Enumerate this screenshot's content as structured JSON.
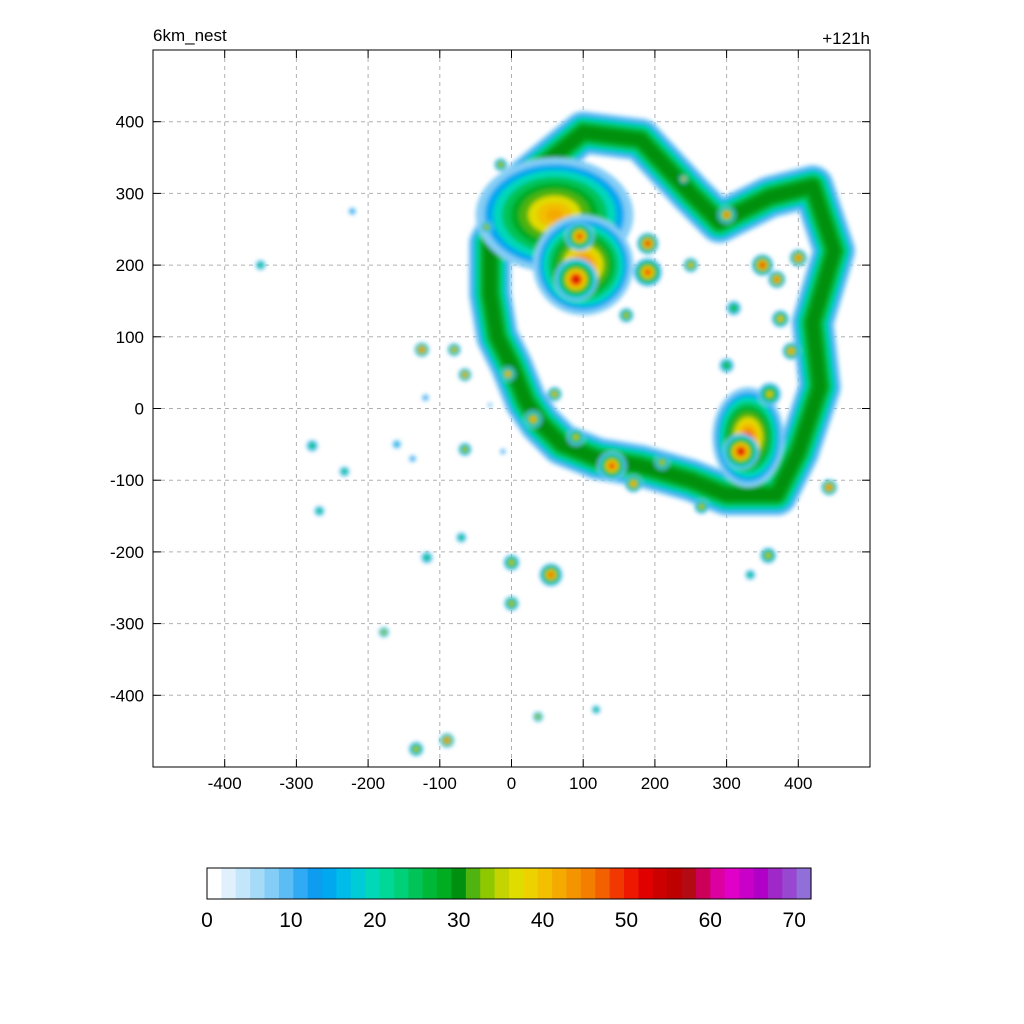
{
  "chart_data": {
    "type": "heatmap",
    "title": "6km_nest",
    "lead_time": "+121h",
    "xlim": [
      -500,
      500
    ],
    "ylim": [
      -500,
      500
    ],
    "x_ticks": [
      -400,
      -300,
      -200,
      -100,
      0,
      100,
      200,
      300,
      400
    ],
    "y_ticks": [
      400,
      300,
      200,
      100,
      0,
      -100,
      -200,
      -300,
      -400
    ],
    "grid": true,
    "xlabel": "",
    "ylabel": "",
    "colorbar": {
      "range": [
        0,
        72
      ],
      "ticks": [
        0,
        10,
        20,
        30,
        40,
        50,
        60,
        70
      ],
      "colors": [
        "#ffffff",
        "#e0f0fc",
        "#c4e6fa",
        "#a6dbf8",
        "#84cdf6",
        "#5cbcf4",
        "#30aaf4",
        "#0e9cf0",
        "#00a8f0",
        "#00bce8",
        "#00ccd8",
        "#00d8b8",
        "#00d898",
        "#00d078",
        "#00c458",
        "#00b838",
        "#00ac20",
        "#009010",
        "#50b410",
        "#90c800",
        "#c4d400",
        "#e0dc00",
        "#eed200",
        "#f2c000",
        "#f4aa00",
        "#f49400",
        "#f47e00",
        "#f26000",
        "#f03800",
        "#ee1800",
        "#e00000",
        "#cc0000",
        "#be0000",
        "#b40a14",
        "#cc0058",
        "#dc00a0",
        "#e000c8",
        "#c800c8",
        "#b000c8",
        "#a028c8",
        "#9848d0",
        "#9070d8"
      ]
    },
    "features": [
      {
        "type": "band",
        "name": "rainband-main",
        "points": [
          [
            -30,
            230
          ],
          [
            20,
            320
          ],
          [
            100,
            385
          ],
          [
            180,
            375
          ],
          [
            250,
            300
          ],
          [
            290,
            260
          ],
          [
            360,
            295
          ],
          [
            420,
            310
          ],
          [
            450,
            220
          ],
          [
            420,
            120
          ],
          [
            430,
            30
          ],
          [
            400,
            -60
          ],
          [
            370,
            -120
          ],
          [
            300,
            -120
          ],
          [
            250,
            -100
          ],
          [
            180,
            -80
          ],
          [
            120,
            -70
          ],
          [
            70,
            -50
          ],
          [
            40,
            -20
          ],
          [
            20,
            10
          ],
          [
            0,
            60
          ],
          [
            -20,
            100
          ],
          [
            -30,
            160
          ],
          [
            -30,
            230
          ]
        ],
        "width": 60,
        "value": 30
      },
      {
        "type": "blob",
        "name": "nw-core",
        "x": 60,
        "y": 270,
        "rx": 110,
        "ry": 80,
        "value": 42
      },
      {
        "type": "blob",
        "name": "nw-core-2",
        "x": 100,
        "y": 200,
        "rx": 70,
        "ry": 70,
        "value": 45
      },
      {
        "type": "blob",
        "name": "east-core",
        "x": 330,
        "y": -40,
        "rx": 50,
        "ry": 70,
        "value": 48
      },
      {
        "type": "cell",
        "name": "c1",
        "x": 90,
        "y": 180,
        "r": 30,
        "value": 55
      },
      {
        "type": "cell",
        "name": "c2",
        "x": 95,
        "y": 240,
        "r": 20,
        "value": 52
      },
      {
        "type": "cell",
        "name": "c3",
        "x": 320,
        "y": -60,
        "r": 25,
        "value": 55
      },
      {
        "type": "cell",
        "name": "c4",
        "x": 190,
        "y": 230,
        "r": 15,
        "value": 55
      },
      {
        "type": "cell",
        "name": "c5",
        "x": 190,
        "y": 190,
        "r": 20,
        "value": 52
      },
      {
        "type": "cell",
        "name": "c6",
        "x": 350,
        "y": 200,
        "r": 15,
        "value": 55
      },
      {
        "type": "cell",
        "name": "c7",
        "x": 370,
        "y": 180,
        "r": 12,
        "value": 52
      },
      {
        "type": "cell",
        "name": "c8",
        "x": 300,
        "y": 270,
        "r": 12,
        "value": 52
      },
      {
        "type": "cell",
        "name": "c9",
        "x": 140,
        "y": -80,
        "r": 20,
        "value": 52
      },
      {
        "type": "cell",
        "name": "c10",
        "x": 400,
        "y": 210,
        "r": 12,
        "value": 50
      },
      {
        "type": "cell",
        "name": "c11",
        "x": -125,
        "y": 82,
        "r": 10,
        "value": 50
      },
      {
        "type": "cell",
        "name": "c12",
        "x": -80,
        "y": 82,
        "r": 9,
        "value": 42
      },
      {
        "type": "cell",
        "name": "c13",
        "x": -65,
        "y": 47,
        "r": 9,
        "value": 45
      },
      {
        "type": "cell",
        "name": "c14",
        "x": -5,
        "y": 48,
        "r": 10,
        "value": 45
      },
      {
        "type": "cell",
        "name": "c15",
        "x": -35,
        "y": 253,
        "r": 8,
        "value": 38
      },
      {
        "type": "cell",
        "name": "c16",
        "x": -15,
        "y": 340,
        "r": 9,
        "value": 38
      },
      {
        "type": "cell",
        "name": "c17",
        "x": -65,
        "y": -57,
        "r": 9,
        "value": 40
      },
      {
        "type": "cell",
        "name": "c18",
        "x": -70,
        "y": -180,
        "r": 7,
        "value": 28
      },
      {
        "type": "cell",
        "name": "c19",
        "x": 0,
        "y": -215,
        "r": 11,
        "value": 40
      },
      {
        "type": "cell",
        "name": "c20",
        "x": 55,
        "y": -232,
        "r": 16,
        "value": 50
      },
      {
        "type": "cell",
        "name": "c21",
        "x": 0,
        "y": -272,
        "r": 10,
        "value": 38
      },
      {
        "type": "cell",
        "name": "c22",
        "x": 37,
        "y": -430,
        "r": 7,
        "value": 38
      },
      {
        "type": "cell",
        "name": "c23",
        "x": 118,
        "y": -420,
        "r": 6,
        "value": 28
      },
      {
        "type": "cell",
        "name": "c24",
        "x": -90,
        "y": -463,
        "r": 10,
        "value": 50
      },
      {
        "type": "cell",
        "name": "c25",
        "x": -133,
        "y": -475,
        "r": 10,
        "value": 38
      },
      {
        "type": "cell",
        "name": "c26",
        "x": -178,
        "y": -312,
        "r": 7,
        "value": 38
      },
      {
        "type": "cell",
        "name": "c27",
        "x": -118,
        "y": -208,
        "r": 8,
        "value": 28
      },
      {
        "type": "cell",
        "name": "c28",
        "x": -278,
        "y": -52,
        "r": 8,
        "value": 28
      },
      {
        "type": "cell",
        "name": "c29",
        "x": -233,
        "y": -88,
        "r": 7,
        "value": 25
      },
      {
        "type": "cell",
        "name": "c30",
        "x": -268,
        "y": -143,
        "r": 7,
        "value": 25
      },
      {
        "type": "cell",
        "name": "c31",
        "x": -350,
        "y": 200,
        "r": 7,
        "value": 25
      },
      {
        "type": "cell",
        "name": "c32",
        "x": -222,
        "y": 275,
        "r": 5,
        "value": 15
      },
      {
        "type": "cell",
        "name": "c33",
        "x": -160,
        "y": -50,
        "r": 6,
        "value": 18
      },
      {
        "type": "cell",
        "name": "c34",
        "x": -138,
        "y": -70,
        "r": 5,
        "value": 12
      },
      {
        "type": "cell",
        "name": "c35",
        "x": -120,
        "y": 15,
        "r": 5,
        "value": 12
      },
      {
        "type": "cell",
        "name": "c36",
        "x": -12,
        "y": -60,
        "r": 4,
        "value": 12
      },
      {
        "type": "cell",
        "name": "c37",
        "x": -30,
        "y": 5,
        "r": 3,
        "value": 12
      },
      {
        "type": "cell",
        "name": "c38",
        "x": 443,
        "y": -110,
        "r": 11,
        "value": 50
      },
      {
        "type": "cell",
        "name": "c39",
        "x": 358,
        "y": -205,
        "r": 11,
        "value": 40
      },
      {
        "type": "cell",
        "name": "c40",
        "x": 333,
        "y": -232,
        "r": 7,
        "value": 25
      },
      {
        "type": "cell",
        "name": "c41",
        "x": 265,
        "y": -137,
        "r": 10,
        "value": 40
      },
      {
        "type": "cell",
        "name": "c42",
        "x": 170,
        "y": -105,
        "r": 12,
        "value": 45
      },
      {
        "type": "cell",
        "name": "c43",
        "x": 210,
        "y": -75,
        "r": 10,
        "value": 40
      },
      {
        "type": "cell",
        "name": "c44",
        "x": 390,
        "y": 80,
        "r": 12,
        "value": 45
      },
      {
        "type": "cell",
        "name": "c45",
        "x": 375,
        "y": 125,
        "r": 12,
        "value": 42
      },
      {
        "type": "cell",
        "name": "c46",
        "x": 360,
        "y": 20,
        "r": 16,
        "value": 40
      },
      {
        "type": "cell",
        "name": "c47",
        "x": 310,
        "y": 140,
        "r": 10,
        "value": 32
      },
      {
        "type": "cell",
        "name": "c48",
        "x": 300,
        "y": 60,
        "r": 10,
        "value": 32
      },
      {
        "type": "cell",
        "name": "c49",
        "x": 60,
        "y": 20,
        "r": 10,
        "value": 42
      },
      {
        "type": "cell",
        "name": "c50",
        "x": 30,
        "y": -15,
        "r": 12,
        "value": 45
      },
      {
        "type": "cell",
        "name": "c51",
        "x": 90,
        "y": -40,
        "r": 12,
        "value": 40
      },
      {
        "type": "cell",
        "name": "c52",
        "x": 250,
        "y": 200,
        "r": 10,
        "value": 42
      },
      {
        "type": "cell",
        "name": "c53",
        "x": 240,
        "y": 320,
        "r": 6,
        "value": 48
      },
      {
        "type": "cell",
        "name": "c54",
        "x": 160,
        "y": 130,
        "r": 10,
        "value": 40
      }
    ]
  }
}
